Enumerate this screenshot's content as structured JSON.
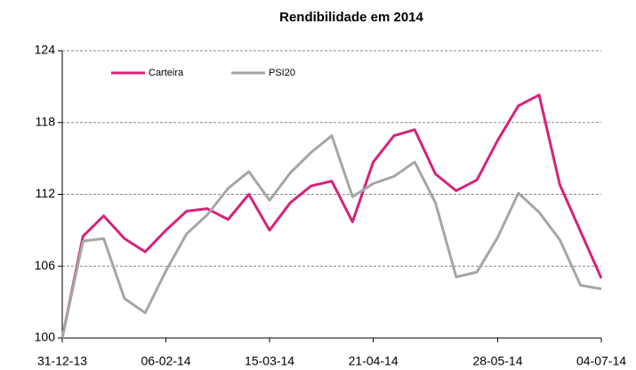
{
  "chart_data": {
    "type": "line",
    "title": "Rendibilidade em 2014",
    "categories": [
      "31-12-13",
      null,
      null,
      null,
      null,
      "06-02-14",
      null,
      null,
      null,
      null,
      "15-03-14",
      null,
      null,
      null,
      null,
      "21-04-14",
      null,
      null,
      null,
      null,
      null,
      "28-05-14",
      null,
      null,
      null,
      null,
      "04-07-14"
    ],
    "series": [
      {
        "name": "Carteira",
        "color": "#d6237a",
        "values": [
          100,
          108.5,
          110.2,
          108.3,
          107.2,
          109.0,
          110.6,
          110.8,
          109.9,
          112.0,
          109.0,
          111.3,
          112.7,
          113.1,
          109.7,
          114.7,
          116.9,
          117.4,
          113.7,
          112.3,
          113.2,
          116.5,
          119.4,
          120.3,
          112.8,
          108.9,
          105.0
        ]
      },
      {
        "name": "PSI20",
        "color": "#a6a6a6",
        "values": [
          100,
          108.1,
          108.3,
          103.3,
          102.1,
          105.6,
          108.7,
          110.3,
          112.5,
          113.9,
          111.5,
          113.8,
          115.5,
          116.9,
          111.8,
          112.9,
          113.5,
          114.7,
          111.3,
          105.1,
          105.5,
          108.4,
          112.1,
          110.5,
          108.2,
          104.4,
          104.1
        ]
      }
    ],
    "ylim": [
      100,
      124
    ],
    "yticks": [
      100,
      106,
      112,
      118,
      124
    ],
    "grid": true
  }
}
